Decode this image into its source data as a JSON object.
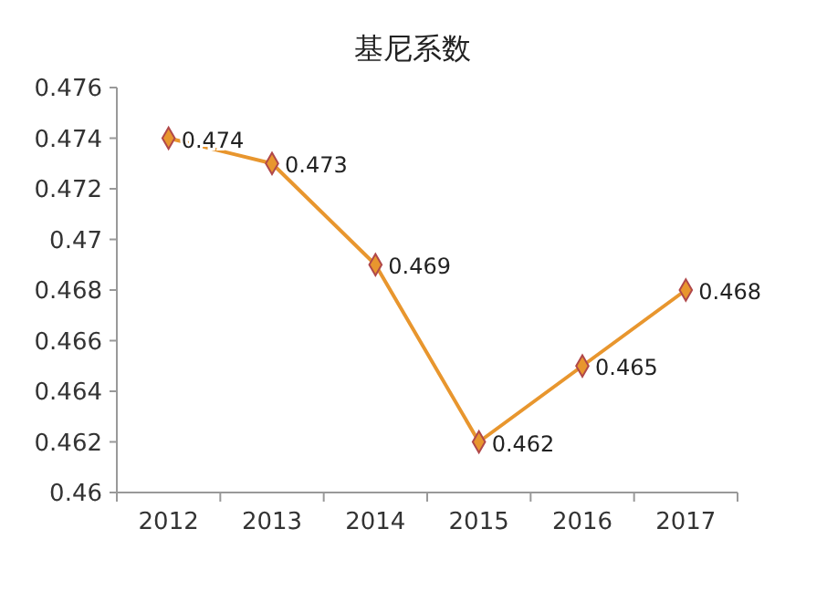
{
  "chart_data": {
    "type": "line",
    "title": "基尼系数",
    "categories": [
      "2012",
      "2013",
      "2014",
      "2015",
      "2016",
      "2017"
    ],
    "series": [
      {
        "color": "#e8962e",
        "values": [
          0.474,
          0.473,
          0.469,
          0.462,
          0.465,
          0.468
        ]
      }
    ],
    "ylim": [
      0.46,
      0.476
    ],
    "yticks": [
      {
        "value": 0.46,
        "label": "0.46"
      },
      0.462,
      0.464,
      0.466,
      0.468,
      {
        "value": 0.47,
        "label": "0.47"
      },
      0.472,
      0.474,
      0.476
    ],
    "marker": "diamond",
    "data_labels": true
  }
}
